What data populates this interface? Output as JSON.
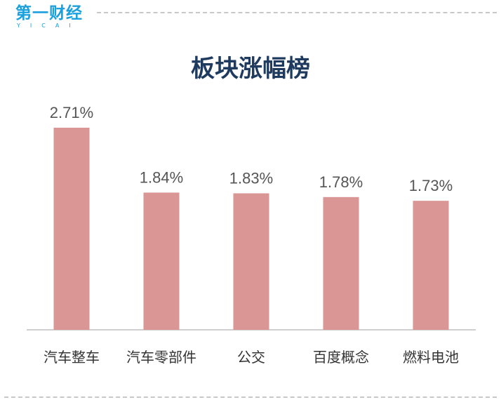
{
  "logo": {
    "text": "第一财经",
    "sub": "YICAI"
  },
  "chart_data": {
    "type": "bar",
    "title": "板块涨幅榜",
    "categories": [
      "汽车整车",
      "汽车零部件",
      "公交",
      "百度概念",
      "燃料电池"
    ],
    "values": [
      2.71,
      1.84,
      1.83,
      1.78,
      1.73
    ],
    "value_labels": [
      "2.71%",
      "1.84%",
      "1.83%",
      "1.78%",
      "1.73%"
    ],
    "xlabel": "",
    "ylabel": "",
    "ylim": [
      0,
      2.71
    ],
    "bar_color": "#d99694",
    "grid": false,
    "legend": "none"
  }
}
